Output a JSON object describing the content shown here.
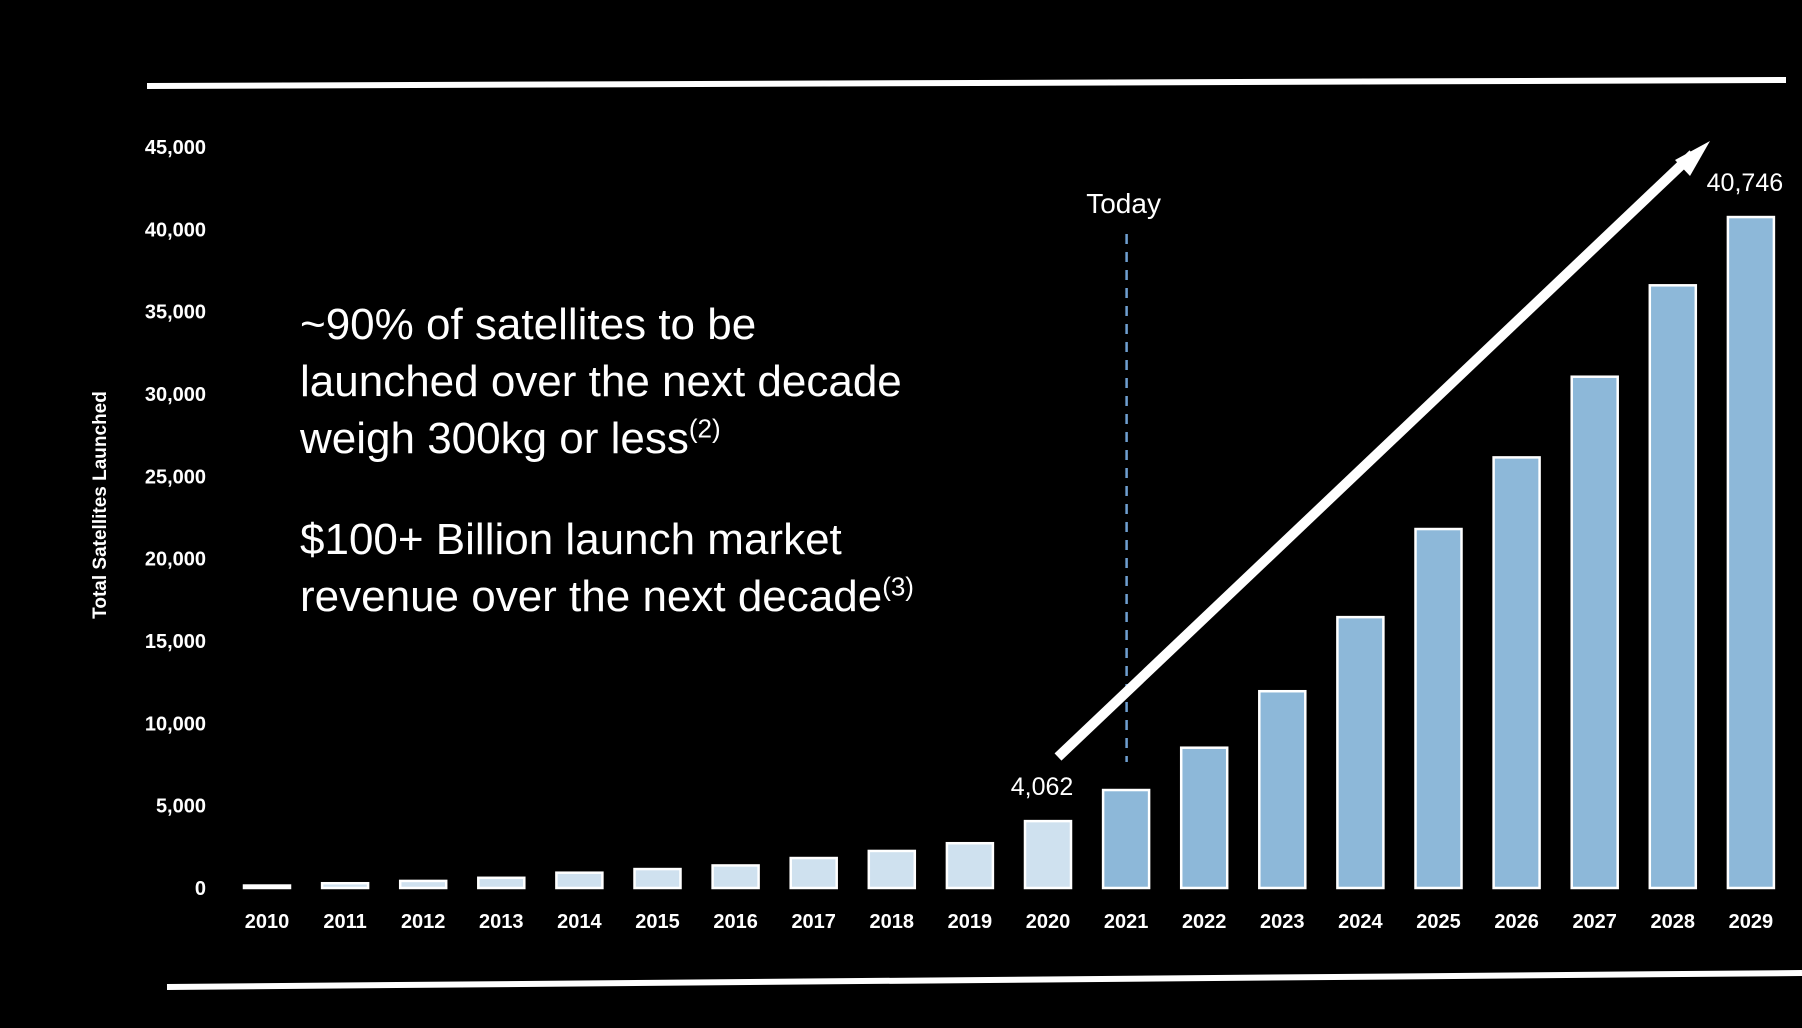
{
  "chart_data": {
    "type": "bar",
    "ylabel": "Total Satellites Launched",
    "xlabel": "",
    "ylim": [
      0,
      45000
    ],
    "yticks": [
      0,
      5000,
      10000,
      15000,
      20000,
      25000,
      30000,
      35000,
      40000,
      45000
    ],
    "ytick_labels": [
      "0",
      "5,000",
      "10,000",
      "15,000",
      "20,000",
      "25,000",
      "30,000",
      "35,000",
      "40,000",
      "45,000"
    ],
    "categories": [
      "2010",
      "2011",
      "2012",
      "2013",
      "2014",
      "2015",
      "2016",
      "2017",
      "2018",
      "2019",
      "2020",
      "2021",
      "2022",
      "2023",
      "2024",
      "2025",
      "2026",
      "2027",
      "2028",
      "2029"
    ],
    "values": [
      150,
      290,
      430,
      620,
      930,
      1150,
      1370,
      1820,
      2250,
      2720,
      4062,
      5950,
      8520,
      11950,
      16450,
      21800,
      26150,
      31050,
      36600,
      40746
    ],
    "bar_colors": {
      "historical": "#cfe1ef",
      "projected": "#8db8d9",
      "projected_from": "2021"
    },
    "data_labels": [
      {
        "category": "2020",
        "text": "4,062"
      },
      {
        "category": "2029",
        "text": "40,746"
      }
    ],
    "today_marker": {
      "category": "2021",
      "label": "Today"
    },
    "grid": false
  },
  "callouts": [
    {
      "text": "~90% of satellites to be launched over the next decade weigh 300kg or less",
      "note": "(2)"
    },
    {
      "text": "$100+ Billion launch market revenue over the next decade",
      "note": "(3)"
    }
  ]
}
